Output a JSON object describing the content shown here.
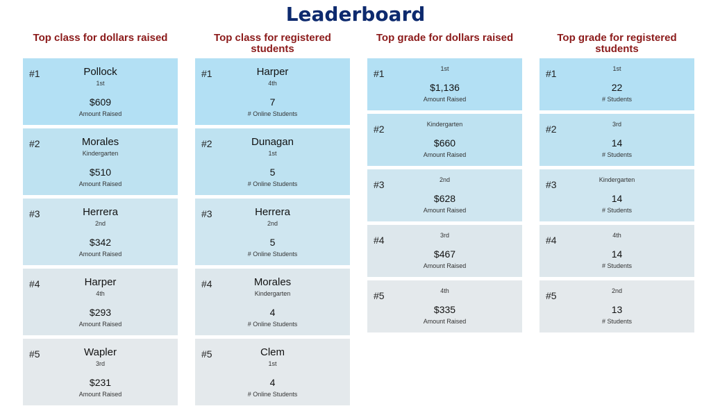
{
  "title": "Leaderboard",
  "columns": [
    {
      "heading": "Top class for dollars raised",
      "kind": "tall",
      "entries": [
        {
          "rank": "#1",
          "name": "Pollock",
          "grade": "1st",
          "value": "$609",
          "label": "Amount Raised",
          "bg": "#b3e0f4"
        },
        {
          "rank": "#2",
          "name": "Morales",
          "grade": "Kindergarten",
          "value": "$510",
          "label": "Amount Raised",
          "bg": "#bee2f1"
        },
        {
          "rank": "#3",
          "name": "Herrera",
          "grade": "2nd",
          "value": "$342",
          "label": "Amount Raised",
          "bg": "#cfe6f0"
        },
        {
          "rank": "#4",
          "name": "Harper",
          "grade": "4th",
          "value": "$293",
          "label": "Amount Raised",
          "bg": "#dde7ec"
        },
        {
          "rank": "#5",
          "name": "Wapler",
          "grade": "3rd",
          "value": "$231",
          "label": "Amount Raised",
          "bg": "#e4e9ec"
        }
      ]
    },
    {
      "heading": "Top class for registered students",
      "kind": "tall",
      "entries": [
        {
          "rank": "#1",
          "name": "Harper",
          "grade": "4th",
          "value": "7",
          "label": "# Online Students",
          "bg": "#b3e0f4"
        },
        {
          "rank": "#2",
          "name": "Dunagan",
          "grade": "1st",
          "value": "5",
          "label": "# Online Students",
          "bg": "#bee2f1"
        },
        {
          "rank": "#3",
          "name": "Herrera",
          "grade": "2nd",
          "value": "5",
          "label": "# Online Students",
          "bg": "#cfe6f0"
        },
        {
          "rank": "#4",
          "name": "Morales",
          "grade": "Kindergarten",
          "value": "4",
          "label": "# Online Students",
          "bg": "#dde7ec"
        },
        {
          "rank": "#5",
          "name": "Clem",
          "grade": "1st",
          "value": "4",
          "label": "# Online Students",
          "bg": "#e4e9ec"
        }
      ]
    },
    {
      "heading": "Top grade for dollars raised",
      "kind": "short",
      "entries": [
        {
          "rank": "#1",
          "grade": "1st",
          "value": "$1,136",
          "label": "Amount Raised",
          "bg": "#b3e0f4"
        },
        {
          "rank": "#2",
          "grade": "Kindergarten",
          "value": "$660",
          "label": "Amount Raised",
          "bg": "#bee2f1"
        },
        {
          "rank": "#3",
          "grade": "2nd",
          "value": "$628",
          "label": "Amount Raised",
          "bg": "#cfe6f0"
        },
        {
          "rank": "#4",
          "grade": "3rd",
          "value": "$467",
          "label": "Amount Raised",
          "bg": "#dde7ec"
        },
        {
          "rank": "#5",
          "grade": "4th",
          "value": "$335",
          "label": "Amount Raised",
          "bg": "#e4e9ec"
        }
      ]
    },
    {
      "heading": "Top grade for registered students",
      "kind": "short",
      "entries": [
        {
          "rank": "#1",
          "grade": "1st",
          "value": "22",
          "label": "# Students",
          "bg": "#b3e0f4"
        },
        {
          "rank": "#2",
          "grade": "3rd",
          "value": "14",
          "label": "# Students",
          "bg": "#bee2f1"
        },
        {
          "rank": "#3",
          "grade": "Kindergarten",
          "value": "14",
          "label": "# Students",
          "bg": "#cfe6f0"
        },
        {
          "rank": "#4",
          "grade": "4th",
          "value": "14",
          "label": "# Students",
          "bg": "#dde7ec"
        },
        {
          "rank": "#5",
          "grade": "2nd",
          "value": "13",
          "label": "# Students",
          "bg": "#e4e9ec"
        }
      ]
    }
  ]
}
